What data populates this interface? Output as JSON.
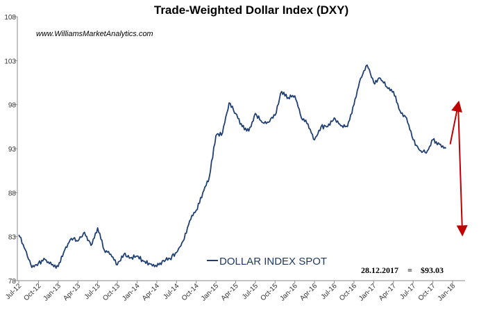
{
  "chart_data": {
    "type": "line",
    "title": "Trade-Weighted Dollar Index (DXY)",
    "watermark": "www.WilliamsMarketAnalytics.com",
    "xlabel": "",
    "ylabel": "",
    "ylim": [
      78,
      108
    ],
    "y_ticks": [
      78,
      83,
      88,
      93,
      98,
      103,
      108
    ],
    "x_tick_labels": [
      "Jul-12",
      "Oct-12",
      "Jan-13",
      "Apr-13",
      "Jul-13",
      "Oct-13",
      "Jan-14",
      "Apr-14",
      "Jul-14",
      "Oct-14",
      "Jan-15",
      "Apr-15",
      "Jul-15",
      "Oct-15",
      "Jan-16",
      "Apr-16",
      "Jul-16",
      "Oct-16",
      "Jan-17",
      "Apr-17",
      "Jul-17",
      "Oct-17",
      "Jan-18"
    ],
    "grid": false,
    "legend_placement": "bottom-center",
    "annotation": {
      "date": "28.12.2017",
      "separator": "=",
      "value": "$93.03"
    },
    "colors": {
      "series": "#1f3f73",
      "arrows": "#c00000"
    },
    "series": [
      {
        "name": "DOLLAR INDEX SPOT",
        "x": [
          "Jul-12",
          "Aug-12",
          "Sep-12",
          "Oct-12",
          "Nov-12",
          "Dec-12",
          "Jan-13",
          "Feb-13",
          "Mar-13",
          "Apr-13",
          "May-13",
          "Jun-13",
          "Jul-13",
          "Aug-13",
          "Sep-13",
          "Oct-13",
          "Nov-13",
          "Dec-13",
          "Jan-14",
          "Feb-14",
          "Mar-14",
          "Apr-14",
          "May-14",
          "Jun-14",
          "Jul-14",
          "Aug-14",
          "Sep-14",
          "Oct-14",
          "Nov-14",
          "Dec-14",
          "Jan-15",
          "Feb-15",
          "Mar-15",
          "Apr-15",
          "May-15",
          "Jun-15",
          "Jul-15",
          "Aug-15",
          "Sep-15",
          "Oct-15",
          "Nov-15",
          "Dec-15",
          "Jan-16",
          "Feb-16",
          "Mar-16",
          "Apr-16",
          "May-16",
          "Jun-16",
          "Jul-16",
          "Aug-16",
          "Sep-16",
          "Oct-16",
          "Nov-16",
          "Dec-16",
          "Jan-17",
          "Feb-17",
          "Mar-17",
          "Apr-17",
          "May-17",
          "Jun-17",
          "Jul-17",
          "Aug-17",
          "Sep-17",
          "Oct-17",
          "Nov-17",
          "Dec-17"
        ],
        "values": [
          83.2,
          81.5,
          79.5,
          80.0,
          80.4,
          79.8,
          79.6,
          81.5,
          82.8,
          82.5,
          83.5,
          82.0,
          84.0,
          81.5,
          81.0,
          79.8,
          81.0,
          80.6,
          80.8,
          80.2,
          79.9,
          79.6,
          80.3,
          80.5,
          81.2,
          82.5,
          84.8,
          86.0,
          88.0,
          89.8,
          94.5,
          94.8,
          98.2,
          97.0,
          95.5,
          95.0,
          97.0,
          96.0,
          96.0,
          96.8,
          99.5,
          98.8,
          99.0,
          96.5,
          95.8,
          94.0,
          95.5,
          95.5,
          96.5,
          95.6,
          95.5,
          98.0,
          101.0,
          102.5,
          100.5,
          101.0,
          100.0,
          99.5,
          97.3,
          96.5,
          94.0,
          92.8,
          92.5,
          94.0,
          93.5,
          93.03
        ]
      }
    ],
    "arrows": [
      {
        "from": {
          "date": "Dec-17",
          "value": 93.5
        },
        "to": {
          "date": "Jan-18",
          "value": 98.0
        }
      },
      {
        "from": {
          "date": "Jan-18",
          "value": 98.0
        },
        "to": {
          "date": "Jan-18",
          "value": 83.5
        }
      }
    ]
  }
}
